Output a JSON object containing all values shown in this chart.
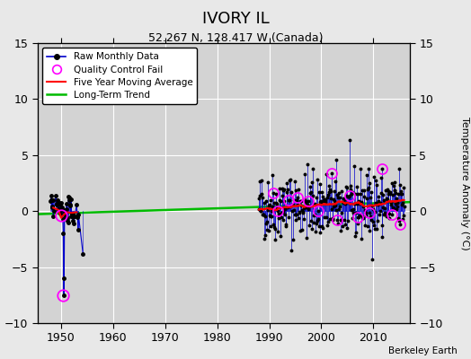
{
  "title": "IVORY IL",
  "subtitle": "52.267 N, 128.417 W (Canada)",
  "ylabel": "Temperature Anomaly (°C)",
  "credit": "Berkeley Earth",
  "xlim": [
    1945.5,
    2017
  ],
  "ylim": [
    -10,
    15
  ],
  "yticks": [
    -10,
    -5,
    0,
    5,
    10,
    15
  ],
  "xticks": [
    1950,
    1960,
    1970,
    1980,
    1990,
    2000,
    2010
  ],
  "bg_color": "#e8e8e8",
  "plot_bg_color": "#d3d3d3",
  "raw_color": "#0000cc",
  "qc_color": "#ff00ff",
  "moving_avg_color": "#ff0000",
  "trend_color": "#00bb00",
  "trend_x": [
    1945,
    2018
  ],
  "trend_y": [
    -0.28,
    0.82
  ]
}
